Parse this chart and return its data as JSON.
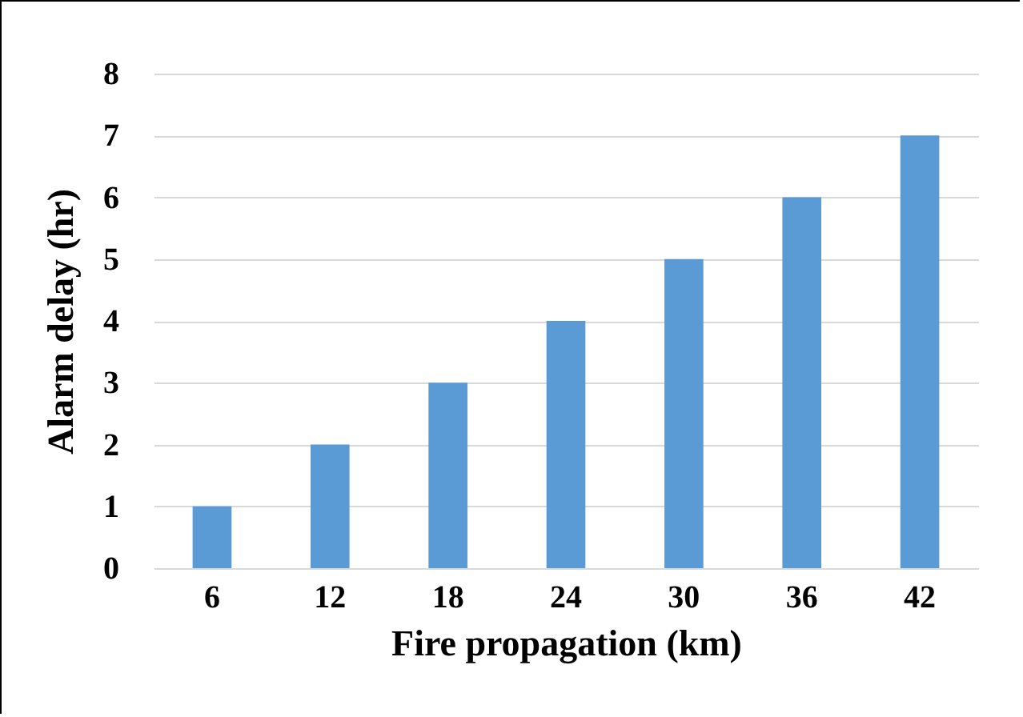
{
  "chart_data": {
    "type": "bar",
    "xlabel": "Fire propagation (km)",
    "ylabel": "Alarm delay (hr)",
    "categories": [
      "6",
      "12",
      "18",
      "24",
      "30",
      "36",
      "42"
    ],
    "values": [
      1,
      2,
      3,
      4,
      5,
      6,
      7
    ],
    "color": "#5b9bd5",
    "ylim": [
      0,
      8
    ],
    "yticks": [
      0,
      1,
      2,
      3,
      4,
      5,
      6,
      7,
      8
    ],
    "grid": "y"
  }
}
